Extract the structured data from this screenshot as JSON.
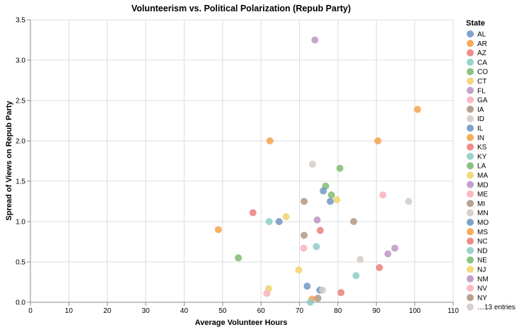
{
  "chart_data": {
    "type": "scatter",
    "title": "Volunteerism vs. Political Polarization (Repub Party)",
    "xlabel": "Average Volunteer Hours",
    "ylabel": "Spread of Views on Repub Party",
    "xlim": [
      0,
      110
    ],
    "ylim": [
      0,
      3.5
    ],
    "x_ticks": [
      0,
      10,
      20,
      30,
      40,
      50,
      60,
      70,
      80,
      90,
      100,
      110
    ],
    "y_ticks": [
      0.0,
      0.5,
      1.0,
      1.5,
      2.0,
      2.5,
      3.0,
      3.5
    ],
    "x_tick_labels": [
      "0",
      "10",
      "20",
      "30",
      "40",
      "50",
      "60",
      "70",
      "80",
      "90",
      "100",
      "110"
    ],
    "y_tick_labels": [
      "0.0",
      "0.5",
      "1.0",
      "1.5",
      "2.0",
      "2.5",
      "3.0",
      "3.5"
    ],
    "grid": true,
    "legend_position": "right",
    "legend": {
      "title": "State",
      "entries": [
        {
          "label": "AL",
          "color": "#7297c6"
        },
        {
          "label": "AR",
          "color": "#f6a24b"
        },
        {
          "label": "AZ",
          "color": "#ec7f7f"
        },
        {
          "label": "CA",
          "color": "#8fcdc8"
        },
        {
          "label": "CO",
          "color": "#80bb72"
        },
        {
          "label": "CT",
          "color": "#f1d56d"
        },
        {
          "label": "FL",
          "color": "#c094c6"
        },
        {
          "label": "GA",
          "color": "#fcb0b9"
        },
        {
          "label": "IA",
          "color": "#b09883"
        },
        {
          "label": "ID",
          "color": "#d4cbc6"
        },
        {
          "label": "IL",
          "color": "#7297c6"
        },
        {
          "label": "IN",
          "color": "#f6a24b"
        },
        {
          "label": "KS",
          "color": "#ec7f7f"
        },
        {
          "label": "KY",
          "color": "#8fcdc8"
        },
        {
          "label": "LA",
          "color": "#80bb72"
        },
        {
          "label": "MA",
          "color": "#f1d56d"
        },
        {
          "label": "MD",
          "color": "#c094c6"
        },
        {
          "label": "ME",
          "color": "#fcb0b9"
        },
        {
          "label": "MI",
          "color": "#b09883"
        },
        {
          "label": "MN",
          "color": "#d4cbc6"
        },
        {
          "label": "MO",
          "color": "#7297c6"
        },
        {
          "label": "MS",
          "color": "#f6a24b"
        },
        {
          "label": "NC",
          "color": "#ec7f7f"
        },
        {
          "label": "ND",
          "color": "#8fcdc8"
        },
        {
          "label": "NE",
          "color": "#80bb72"
        },
        {
          "label": "NJ",
          "color": "#f1d56d"
        },
        {
          "label": "NM",
          "color": "#c094c6"
        },
        {
          "label": "NV",
          "color": "#fcb0b9"
        },
        {
          "label": "NY",
          "color": "#b09883"
        },
        {
          "label": "…13 entries",
          "color": "#d4cbc6"
        }
      ]
    },
    "points": [
      {
        "x": 74.0,
        "y": 3.25,
        "color": "#c094c6"
      },
      {
        "x": 100.7,
        "y": 2.39,
        "color": "#f6a24b"
      },
      {
        "x": 62.3,
        "y": 2.0,
        "color": "#f6a24b"
      },
      {
        "x": 90.4,
        "y": 2.0,
        "color": "#f6a24b"
      },
      {
        "x": 73.4,
        "y": 1.71,
        "color": "#d4cbc6"
      },
      {
        "x": 80.5,
        "y": 1.66,
        "color": "#80bb72"
      },
      {
        "x": 76.8,
        "y": 1.44,
        "color": "#80bb72"
      },
      {
        "x": 76.2,
        "y": 1.38,
        "color": "#7297c6"
      },
      {
        "x": 78.3,
        "y": 1.33,
        "color": "#80bb72"
      },
      {
        "x": 91.7,
        "y": 1.33,
        "color": "#fcb0b9"
      },
      {
        "x": 79.7,
        "y": 1.27,
        "color": "#f1d56d"
      },
      {
        "x": 78.0,
        "y": 1.25,
        "color": "#7297c6"
      },
      {
        "x": 71.2,
        "y": 1.25,
        "color": "#b09883"
      },
      {
        "x": 98.4,
        "y": 1.25,
        "color": "#d4cbc6"
      },
      {
        "x": 57.9,
        "y": 1.11,
        "color": "#ec7f7f"
      },
      {
        "x": 66.5,
        "y": 1.06,
        "color": "#f1d56d"
      },
      {
        "x": 62.1,
        "y": 1.0,
        "color": "#8fcdc8"
      },
      {
        "x": 64.7,
        "y": 1.0,
        "color": "#7297c6"
      },
      {
        "x": 74.6,
        "y": 1.02,
        "color": "#c094c6"
      },
      {
        "x": 84.1,
        "y": 1.0,
        "color": "#b09883"
      },
      {
        "x": 48.9,
        "y": 0.9,
        "color": "#f6a24b"
      },
      {
        "x": 75.4,
        "y": 0.89,
        "color": "#ec7f7f"
      },
      {
        "x": 71.2,
        "y": 0.83,
        "color": "#b09883"
      },
      {
        "x": 74.4,
        "y": 0.69,
        "color": "#8fcdc8"
      },
      {
        "x": 71.1,
        "y": 0.67,
        "color": "#fcb0b9"
      },
      {
        "x": 94.8,
        "y": 0.67,
        "color": "#c094c6"
      },
      {
        "x": 93.0,
        "y": 0.6,
        "color": "#c094c6"
      },
      {
        "x": 54.1,
        "y": 0.55,
        "color": "#80bb72"
      },
      {
        "x": 85.8,
        "y": 0.53,
        "color": "#d4cbc6"
      },
      {
        "x": 90.8,
        "y": 0.43,
        "color": "#ec7f7f"
      },
      {
        "x": 69.8,
        "y": 0.4,
        "color": "#f1d56d"
      },
      {
        "x": 84.7,
        "y": 0.33,
        "color": "#8fcdc8"
      },
      {
        "x": 72.0,
        "y": 0.2,
        "color": "#7297c6"
      },
      {
        "x": 62.0,
        "y": 0.17,
        "color": "#f1d56d"
      },
      {
        "x": 75.3,
        "y": 0.15,
        "color": "#7297c6"
      },
      {
        "x": 76.0,
        "y": 0.15,
        "color": "#d4cbc6"
      },
      {
        "x": 80.8,
        "y": 0.12,
        "color": "#ec7f7f"
      },
      {
        "x": 61.5,
        "y": 0.11,
        "color": "#fcb0b9"
      },
      {
        "x": 73.3,
        "y": 0.04,
        "color": "#f6a24b"
      },
      {
        "x": 74.8,
        "y": 0.05,
        "color": "#b09883"
      },
      {
        "x": 72.8,
        "y": 0.0,
        "color": "#8fcdc8"
      }
    ]
  }
}
